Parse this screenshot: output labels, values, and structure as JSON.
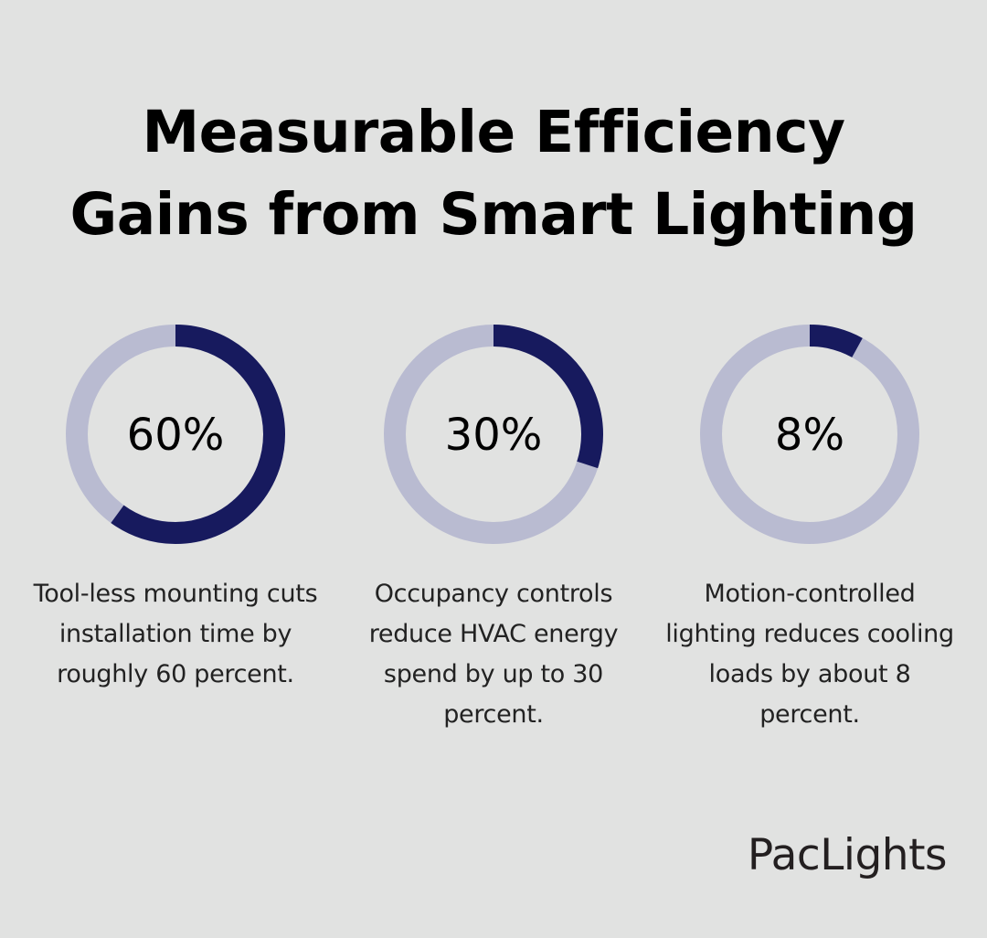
{
  "title": {
    "line1": "Measurable Efficiency",
    "line2": "Gains from Smart Lighting"
  },
  "colors": {
    "background": "#e1e2e1",
    "track": "#b9bbd1",
    "fill": "#171a5e",
    "text": "#000000"
  },
  "chart_data": [
    {
      "type": "pie",
      "label": "60%",
      "value": 60,
      "max": 100,
      "description": "Tool-less mounting cuts installation time by roughly 60 percent."
    },
    {
      "type": "pie",
      "label": "30%",
      "value": 30,
      "max": 100,
      "description": "Occupancy controls reduce HVAC energy spend by up to 30 percent."
    },
    {
      "type": "pie",
      "label": "8%",
      "value": 8,
      "max": 100,
      "description": "Motion-controlled lighting reduces cooling loads by about 8 percent."
    }
  ],
  "brand": {
    "name": "PacLights"
  }
}
